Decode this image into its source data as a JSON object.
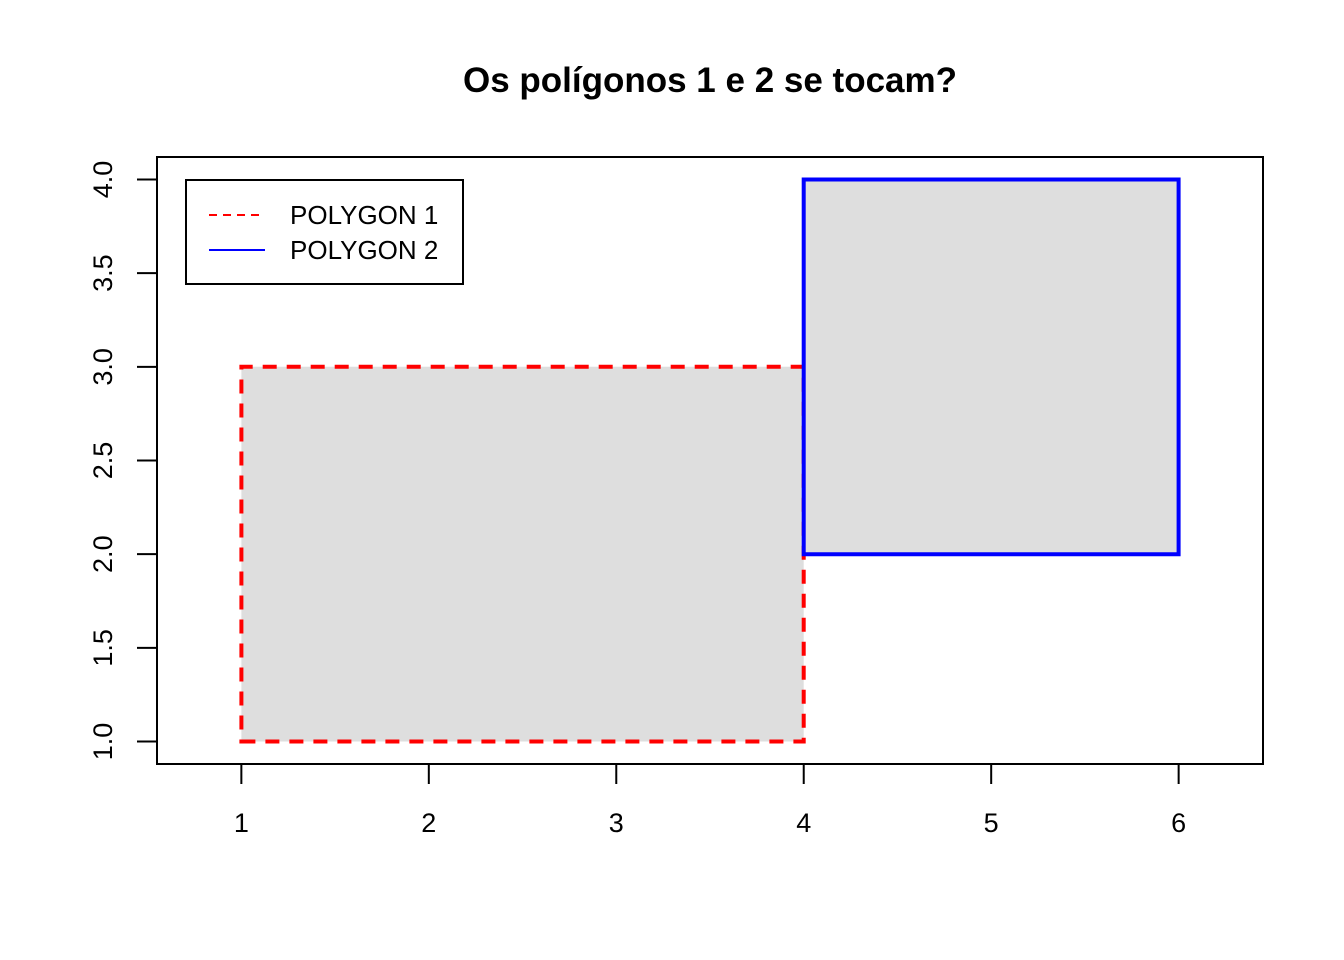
{
  "chart_data": {
    "type": "polygon",
    "title": "Os polígonos 1 e 2 se tocam?",
    "xlabel": "",
    "ylabel": "",
    "xlim": [
      0.55,
      6.45
    ],
    "ylim": [
      0.88,
      4.12
    ],
    "x_ticks": [
      1,
      2,
      3,
      4,
      5,
      6
    ],
    "y_ticks": [
      1.0,
      1.5,
      2.0,
      2.5,
      3.0,
      3.5,
      4.0
    ],
    "x_tick_labels": [
      "1",
      "2",
      "3",
      "4",
      "5",
      "6"
    ],
    "y_tick_labels": [
      "1.0",
      "1.5",
      "2.0",
      "2.5",
      "3.0",
      "3.5",
      "4.0"
    ],
    "legend_position": "top-left",
    "series": [
      {
        "name": "POLYGON 1",
        "vertices": [
          [
            1,
            1
          ],
          [
            4,
            1
          ],
          [
            4,
            3
          ],
          [
            1,
            3
          ]
        ],
        "border_color": "#ff0000",
        "line_style": "dashed",
        "fill_color": "#dedede"
      },
      {
        "name": "POLYGON 2",
        "vertices": [
          [
            4,
            2
          ],
          [
            6,
            2
          ],
          [
            6,
            4
          ],
          [
            4,
            4
          ]
        ],
        "border_color": "#0000ff",
        "line_style": "solid",
        "fill_color": "#dedede"
      }
    ]
  }
}
